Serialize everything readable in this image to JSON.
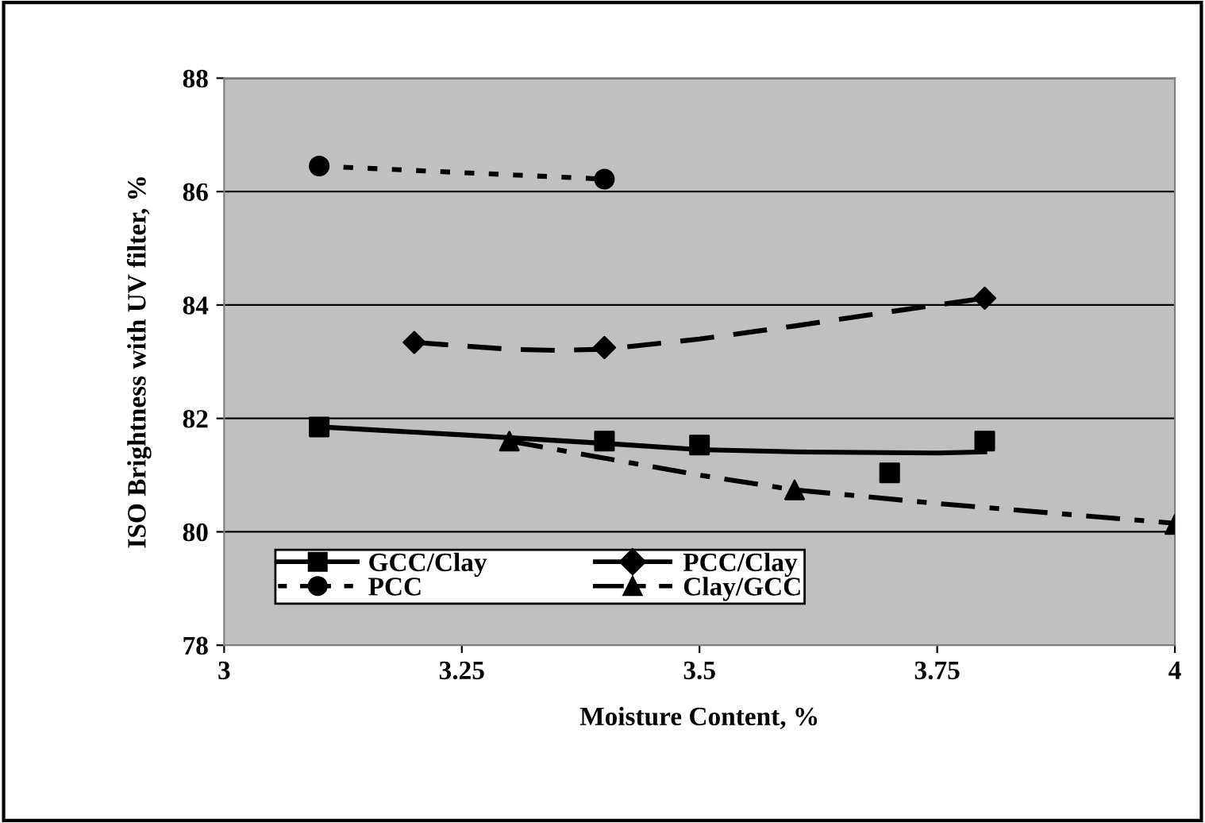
{
  "chart_data": {
    "type": "scatter",
    "xlabel": "Moisture Content, %",
    "ylabel": "ISO Brightness with UV filter, %",
    "xlim": [
      3,
      4
    ],
    "xticks": [
      3,
      3.25,
      3.5,
      3.75,
      4
    ],
    "ylim": [
      78,
      88
    ],
    "yticks": [
      78,
      80,
      82,
      84,
      86,
      88
    ],
    "grid": "y",
    "legend": "bottom left",
    "series": [
      {
        "name": "GCC/Clay",
        "marker": "square",
        "line_style": "solid",
        "color": "#000000",
        "x": [
          3.1,
          3.4,
          3.5,
          3.7,
          3.8
        ],
        "values": [
          81.85,
          81.6,
          81.53,
          81.04,
          81.6
        ]
      },
      {
        "name": "PCC/Clay",
        "marker": "diamond",
        "line_style": "dashed",
        "color": "#000000",
        "x": [
          3.2,
          3.4,
          3.8
        ],
        "values": [
          83.34,
          83.25,
          84.12
        ]
      },
      {
        "name": "PCC",
        "marker": "circle",
        "line_style": "dotted",
        "color": "#000000",
        "x": [
          3.1,
          3.4
        ],
        "values": [
          86.45,
          86.22
        ]
      },
      {
        "name": "Clay/GCC",
        "marker": "triangle",
        "line_style": "dashdot",
        "color": "#000000",
        "x": [
          3.3,
          3.6,
          4.0
        ],
        "values": [
          81.6,
          80.74,
          80.13
        ]
      },
      {
        "type": "line",
        "line_style": "solid",
        "color": "#000000",
        "x": [
          3.1,
          3.25,
          3.4,
          3.5,
          3.6,
          3.75,
          3.8
        ],
        "values": [
          81.85,
          81.71,
          81.56,
          81.45,
          81.41,
          81.39,
          81.41
        ]
      },
      {
        "type": "line",
        "line_style": "dashed",
        "color": "#000000",
        "x": [
          3.2,
          3.3,
          3.35,
          3.4,
          3.5,
          3.6,
          3.7,
          3.8
        ],
        "values": [
          83.34,
          83.22,
          83.2,
          83.22,
          83.4,
          83.63,
          83.88,
          84.12
        ]
      },
      {
        "type": "line",
        "line_style": "dotted",
        "color": "#000000",
        "x": [
          3.1,
          3.4
        ],
        "values": [
          86.45,
          86.22
        ]
      },
      {
        "type": "line",
        "line_style": "dashdot",
        "color": "#000000",
        "x": [
          3.3,
          3.4,
          3.5,
          3.6,
          3.75,
          4.0
        ],
        "values": [
          81.6,
          81.3,
          81.0,
          80.74,
          80.5,
          80.15
        ]
      }
    ]
  }
}
